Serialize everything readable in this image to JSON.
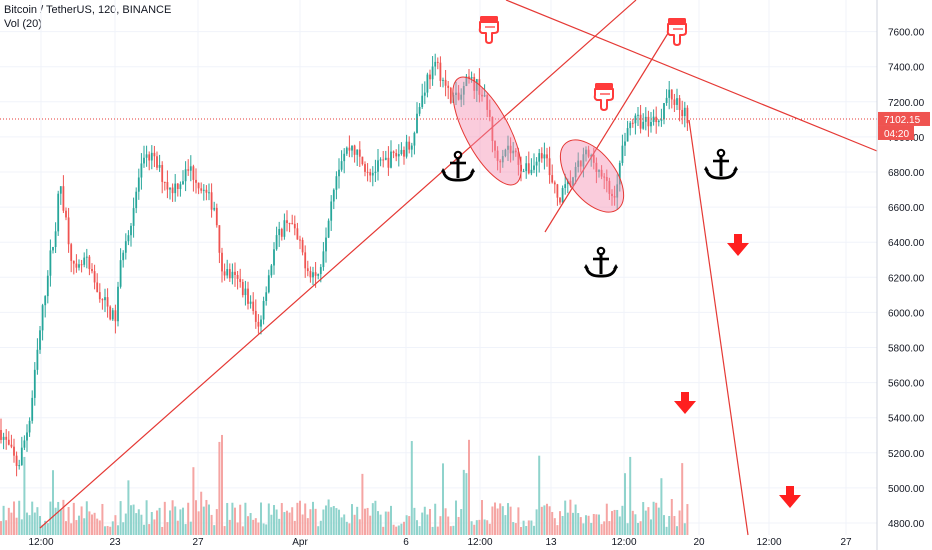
{
  "header": {
    "title": "Bitcoin / TetherUS, 120, BINANCE",
    "volume_label": "Vol (20)"
  },
  "colors": {
    "up": "#26a69a",
    "down": "#ef5350",
    "up_volume": "#8fd3cc",
    "down_volume": "#f5a5a3",
    "trendline": "#e53935",
    "highlight_fill": "#f48fb1",
    "arrow": "#ff1f1f",
    "anchor": "#000000",
    "grid": "#f0f3fa"
  },
  "icons": {
    "anchor": "anchor-icon",
    "down_arrow": "arrow-down-icon",
    "pointing_hand": "hand-pointing-down-icon"
  },
  "chart_data": {
    "type": "candlestick",
    "instrument": "Bitcoin / TetherUS",
    "interval": "120",
    "exchange": "BINANCE",
    "x_axis_ticks": [
      "12:00",
      "23",
      "27",
      "Apr",
      "6",
      "12:00",
      "13",
      "12:00",
      "20",
      "12:00",
      "27"
    ],
    "y_axis_ticks": [
      4800,
      5000,
      5200,
      5400,
      5600,
      5800,
      6000,
      6200,
      6400,
      6600,
      6800,
      7000,
      7200,
      7400,
      7600
    ],
    "y_axis_labels": [
      "4800.00",
      "5000.00",
      "5200.00",
      "5400.00",
      "5600.00",
      "5800.00",
      "6000.00",
      "6200.00",
      "6400.00",
      "6600.00",
      "6800.00",
      "7000.00",
      "7200.00",
      "7400.00",
      "7600.00"
    ],
    "ylim": [
      4750,
      7720
    ],
    "last_price": 7102.15,
    "last_price_label": "7102.15",
    "countdown_label": "04:20",
    "price_path": [
      [
        0,
        5330
      ],
      [
        18,
        5120
      ],
      [
        30,
        5400
      ],
      [
        38,
        5800
      ],
      [
        48,
        6250
      ],
      [
        55,
        6450
      ],
      [
        60,
        6750
      ],
      [
        68,
        6450
      ],
      [
        75,
        6200
      ],
      [
        85,
        6300
      ],
      [
        95,
        6150
      ],
      [
        105,
        6050
      ],
      [
        115,
        5950
      ],
      [
        122,
        6350
      ],
      [
        132,
        6550
      ],
      [
        140,
        6800
      ],
      [
        150,
        6900
      ],
      [
        160,
        6800
      ],
      [
        170,
        6700
      ],
      [
        180,
        6750
      ],
      [
        190,
        6820
      ],
      [
        200,
        6720
      ],
      [
        208,
        6650
      ],
      [
        215,
        6600
      ],
      [
        222,
        6250
      ],
      [
        232,
        6200
      ],
      [
        242,
        6150
      ],
      [
        250,
        6050
      ],
      [
        258,
        5900
      ],
      [
        266,
        6150
      ],
      [
        276,
        6400
      ],
      [
        288,
        6550
      ],
      [
        298,
        6400
      ],
      [
        308,
        6250
      ],
      [
        318,
        6200
      ],
      [
        324,
        6400
      ],
      [
        334,
        6750
      ],
      [
        342,
        6900
      ],
      [
        352,
        6950
      ],
      [
        362,
        6850
      ],
      [
        372,
        6800
      ],
      [
        384,
        6850
      ],
      [
        396,
        6900
      ],
      [
        410,
        6950
      ],
      [
        418,
        7150
      ],
      [
        428,
        7350
      ],
      [
        438,
        7400
      ],
      [
        448,
        7250
      ],
      [
        458,
        7200
      ],
      [
        468,
        7320
      ],
      [
        480,
        7280
      ],
      [
        490,
        7100
      ],
      [
        496,
        6850
      ],
      [
        505,
        6950
      ],
      [
        515,
        6900
      ],
      [
        525,
        6800
      ],
      [
        535,
        6850
      ],
      [
        545,
        6950
      ],
      [
        550,
        6750
      ],
      [
        558,
        6650
      ],
      [
        566,
        6700
      ],
      [
        576,
        6800
      ],
      [
        586,
        6900
      ],
      [
        596,
        6850
      ],
      [
        604,
        6750
      ],
      [
        612,
        6650
      ],
      [
        618,
        6750
      ],
      [
        624,
        7000
      ],
      [
        632,
        7100
      ],
      [
        642,
        7080
      ],
      [
        652,
        7100
      ],
      [
        660,
        7120
      ],
      [
        668,
        7250
      ],
      [
        676,
        7200
      ],
      [
        684,
        7150
      ],
      [
        690,
        7100
      ]
    ]
  }
}
